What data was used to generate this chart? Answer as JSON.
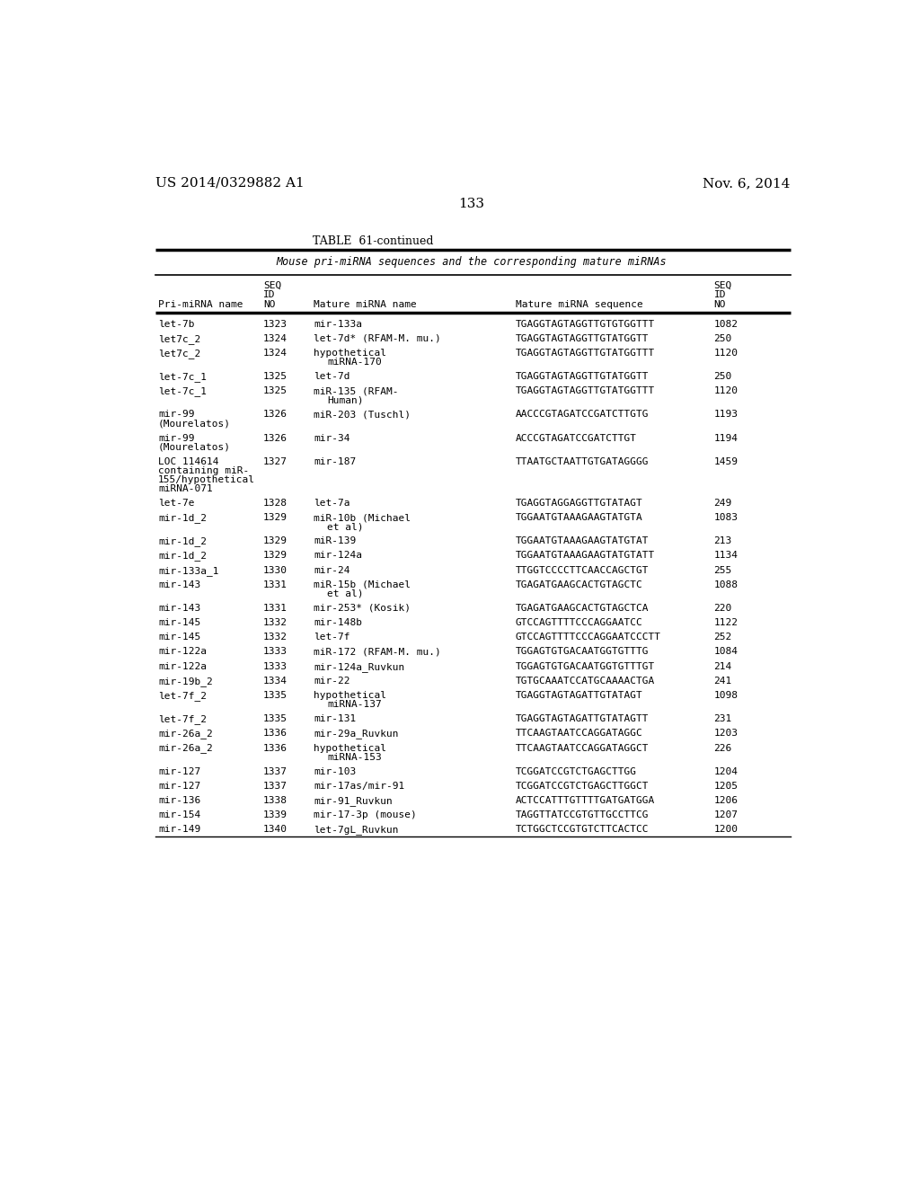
{
  "patent_left": "US 2014/0329882 A1",
  "patent_right": "Nov. 6, 2014",
  "page_number": "133",
  "table_title": "TABLE  61-continued",
  "table_subtitle": "Mouse pri-miRNA sequences and the corresponding mature miRNAs",
  "col_headers_line3": "Pri-miRNA name",
  "col_headers_seqno_line3": "NO",
  "col_headers_mature_name": "Mature miRNA name",
  "col_headers_mature_seq": "Mature miRNA sequence",
  "rows": [
    {
      "pri": "let-7b",
      "seqno": "1323",
      "mature_name": "mir-133a",
      "mature_seq": "TGAGGTAGTAGGTTGTGTGGTTT",
      "id2": "1082"
    },
    {
      "pri": "let7c_2",
      "seqno": "1324",
      "mature_name": "let-7d* (RFAM-M. mu.)",
      "mature_seq": "TGAGGTAGTAGGTTGTATGGTT",
      "id2": "250"
    },
    {
      "pri": "let7c_2",
      "seqno": "1324",
      "mature_name": "hypothetical\nmiRNA-170",
      "mature_seq": "TGAGGTAGTAGGTTGTATGGTTT",
      "id2": "1120"
    },
    {
      "pri": "let-7c_1",
      "seqno": "1325",
      "mature_name": "let-7d",
      "mature_seq": "TGAGGTAGTAGGTTGTATGGTT",
      "id2": "250"
    },
    {
      "pri": "let-7c_1",
      "seqno": "1325",
      "mature_name": "miR-135 (RFAM-\nHuman)",
      "mature_seq": "TGAGGTAGTAGGTTGTATGGTTT",
      "id2": "1120"
    },
    {
      "pri": "mir-99\n(Mourelatos)",
      "seqno": "1326",
      "mature_name": "miR-203 (Tuschl)",
      "mature_seq": "AACCCGTAGATCCGATCTTGTG",
      "id2": "1193"
    },
    {
      "pri": "mir-99\n(Mourelatos)",
      "seqno": "1326",
      "mature_name": "mir-34",
      "mature_seq": "ACCCGTAGATCCGATCTTGT",
      "id2": "1194"
    },
    {
      "pri": "LOC 114614\ncontaining miR-\n155/hypothetical\nmiRNA-071",
      "seqno": "1327",
      "mature_name": "mir-187",
      "mature_seq": "TTAATGCTAATTGTGATAGGGG",
      "id2": "1459"
    },
    {
      "pri": "let-7e",
      "seqno": "1328",
      "mature_name": "let-7a",
      "mature_seq": "TGAGGTAGGAGGTTGTATAGT",
      "id2": "249"
    },
    {
      "pri": "mir-1d_2",
      "seqno": "1329",
      "mature_name": "miR-10b (Michael\net al)",
      "mature_seq": "TGGAATGTAAAGAAGTATGTA",
      "id2": "1083"
    },
    {
      "pri": "mir-1d_2",
      "seqno": "1329",
      "mature_name": "miR-139",
      "mature_seq": "TGGAATGTAAAGAAGTATGTAT",
      "id2": "213"
    },
    {
      "pri": "mir-1d_2",
      "seqno": "1329",
      "mature_name": "mir-124a",
      "mature_seq": "TGGAATGTAAAGAAGTATGTATT",
      "id2": "1134"
    },
    {
      "pri": "mir-133a_1",
      "seqno": "1330",
      "mature_name": "mir-24",
      "mature_seq": "TTGGTCCCCTTCAACCAGCTGT",
      "id2": "255"
    },
    {
      "pri": "mir-143",
      "seqno": "1331",
      "mature_name": "miR-15b (Michael\net al)",
      "mature_seq": "TGAGATGAAGCACTGTAGCTC",
      "id2": "1088"
    },
    {
      "pri": "mir-143",
      "seqno": "1331",
      "mature_name": "mir-253* (Kosik)",
      "mature_seq": "TGAGATGAAGCACTGTAGCTCA",
      "id2": "220"
    },
    {
      "pri": "mir-145",
      "seqno": "1332",
      "mature_name": "mir-148b",
      "mature_seq": "GTCCAGTTTTCCCAGGAATCC",
      "id2": "1122"
    },
    {
      "pri": "mir-145",
      "seqno": "1332",
      "mature_name": "let-7f",
      "mature_seq": "GTCCAGTTTTCCCAGGAATCCCTT",
      "id2": "252"
    },
    {
      "pri": "mir-122a",
      "seqno": "1333",
      "mature_name": "miR-172 (RFAM-M. mu.)",
      "mature_seq": "TGGAGTGTGACAATGGTGTTTG",
      "id2": "1084"
    },
    {
      "pri": "mir-122a",
      "seqno": "1333",
      "mature_name": "mir-124a_Ruvkun",
      "mature_seq": "TGGAGTGTGACAATGGTGTTTGT",
      "id2": "214"
    },
    {
      "pri": "mir-19b_2",
      "seqno": "1334",
      "mature_name": "mir-22",
      "mature_seq": "TGTGCAAATCCATGCAAAACTGA",
      "id2": "241"
    },
    {
      "pri": "let-7f_2",
      "seqno": "1335",
      "mature_name": "hypothetical\nmiRNA-137",
      "mature_seq": "TGAGGTAGTAGATTGTATAGT",
      "id2": "1098"
    },
    {
      "pri": "let-7f_2",
      "seqno": "1335",
      "mature_name": "mir-131",
      "mature_seq": "TGAGGTAGTAGATTGTATAGTT",
      "id2": "231"
    },
    {
      "pri": "mir-26a_2",
      "seqno": "1336",
      "mature_name": "mir-29a_Ruvkun",
      "mature_seq": "TTCAAGTAATCCAGGATAGGC",
      "id2": "1203"
    },
    {
      "pri": "mir-26a_2",
      "seqno": "1336",
      "mature_name": "hypothetical\nmiRNA-153",
      "mature_seq": "TTCAAGTAATCCAGGATAGGCT",
      "id2": "226"
    },
    {
      "pri": "mir-127",
      "seqno": "1337",
      "mature_name": "mir-103",
      "mature_seq": "TCGGATCCGTCTGAGCTTGG",
      "id2": "1204"
    },
    {
      "pri": "mir-127",
      "seqno": "1337",
      "mature_name": "mir-17as/mir-91",
      "mature_seq": "TCGGATCCGTCTGAGCTTGGCT",
      "id2": "1205"
    },
    {
      "pri": "mir-136",
      "seqno": "1338",
      "mature_name": "mir-91_Ruvkun",
      "mature_seq": "ACTCCATTTGTTTTGATGATGGA",
      "id2": "1206"
    },
    {
      "pri": "mir-154",
      "seqno": "1339",
      "mature_name": "mir-17-3p (mouse)",
      "mature_seq": "TAGGTTATCCGTGTTGCCTTCG",
      "id2": "1207"
    },
    {
      "pri": "mir-149",
      "seqno": "1340",
      "mature_name": "let-7gL_Ruvkun",
      "mature_seq": "TCTGGCTCCGTGTCTTCACTCC",
      "id2": "1200"
    }
  ],
  "bg": "#ffffff",
  "fg": "#000000"
}
